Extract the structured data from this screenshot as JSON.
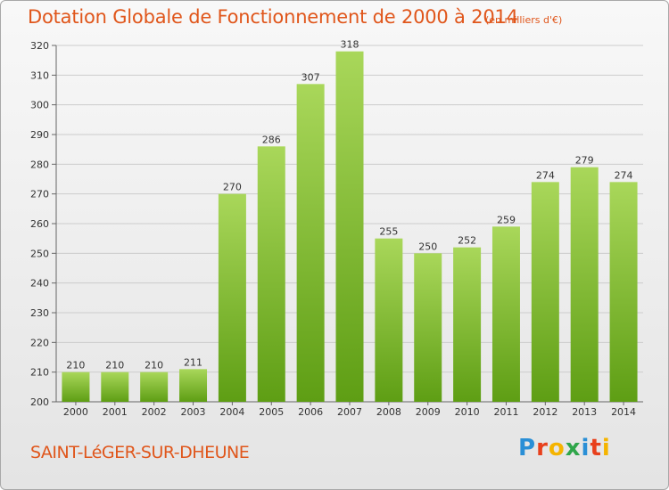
{
  "header": {
    "title": "Dotation Globale de Fonctionnement de 2000 à 2014",
    "unit": "(en milliers d'€)"
  },
  "footer": {
    "commune": "SAINT-LéGER-SUR-DHEUNE",
    "logo_letters": [
      "P",
      "r",
      "o",
      "x",
      "i",
      "t",
      "i"
    ],
    "logo_colors": [
      "#2a8fd6",
      "#e8401c",
      "#f5b400",
      "#2fa64a",
      "#2a8fd6",
      "#e8401c",
      "#f5b400"
    ]
  },
  "colors": {
    "bar_top": "#a9d75a",
    "bar_bottom": "#5e9e14",
    "grid": "#cccccc",
    "accent_text": "#e0561b"
  },
  "chart_data": {
    "type": "bar",
    "title": "Dotation Globale de Fonctionnement de 2000 à 2014",
    "subtitle": "(en milliers d'€)",
    "xlabel": "",
    "ylabel": "",
    "categories": [
      "2000",
      "2001",
      "2002",
      "2003",
      "2004",
      "2005",
      "2006",
      "2007",
      "2008",
      "2009",
      "2010",
      "2011",
      "2012",
      "2013",
      "2014"
    ],
    "values": [
      210,
      210,
      210,
      211,
      270,
      286,
      307,
      318,
      255,
      250,
      252,
      259,
      274,
      279,
      274
    ],
    "ylim": [
      200,
      320
    ],
    "yticks": [
      200,
      210,
      220,
      230,
      240,
      250,
      260,
      270,
      280,
      290,
      300,
      310,
      320
    ],
    "grid": true,
    "legend": "none"
  }
}
